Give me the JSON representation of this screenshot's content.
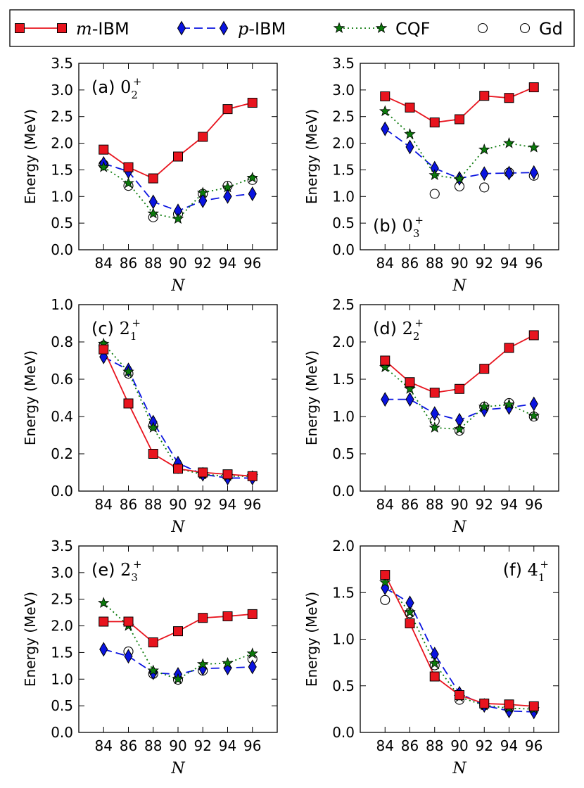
{
  "chart_data": {
    "type": "line",
    "legend": {
      "placement": "top",
      "entries": [
        {
          "key": "mibm",
          "prefix": "m",
          "suffix": "-IBM"
        },
        {
          "key": "pibm",
          "prefix": "p",
          "suffix": "-IBM"
        },
        {
          "key": "cqf",
          "prefix": "",
          "suffix": "CQF"
        },
        {
          "key": "gd",
          "prefix": "",
          "suffix": "Gd"
        }
      ]
    },
    "series_styles": {
      "mibm": {
        "color": "#e8141e",
        "marker": "square",
        "line": "solid"
      },
      "pibm": {
        "color": "#0a14e0",
        "marker": "diamond",
        "line": "dashed"
      },
      "cqf": {
        "color": "#0b7a0b",
        "marker": "star",
        "line": "dotted"
      },
      "gd": {
        "color": "#000000",
        "marker": "circle",
        "line": "none"
      }
    },
    "x": [
      84,
      86,
      88,
      90,
      92,
      94,
      96
    ],
    "xlabel": "N",
    "ylabel": "Energy (MeV)",
    "panels": [
      {
        "id": "a",
        "label": "(a)",
        "state": "0",
        "sub": "2",
        "sup": "+",
        "label_position": "top-left",
        "ylim": [
          0,
          3.5
        ],
        "yticks": [
          "0.0",
          "0.5",
          "1.0",
          "1.5",
          "2.0",
          "2.5",
          "3.0",
          "3.5"
        ],
        "series": {
          "mibm": [
            1.88,
            1.55,
            1.34,
            1.75,
            2.12,
            2.64,
            2.76
          ],
          "pibm": [
            1.62,
            1.47,
            0.9,
            0.73,
            0.92,
            1.0,
            1.05
          ],
          "cqf": [
            1.55,
            1.25,
            0.68,
            0.58,
            1.07,
            1.17,
            1.35
          ],
          "gd": [
            1.6,
            1.2,
            0.61,
            0.67,
            1.05,
            1.2,
            1.31
          ]
        }
      },
      {
        "id": "b",
        "label": "(b)",
        "state": "0",
        "sub": "3",
        "sup": "+",
        "label_position": "bottom-left",
        "ylim": [
          0,
          3.5
        ],
        "yticks": [
          "0.0",
          "0.5",
          "1.0",
          "1.5",
          "2.0",
          "2.5",
          "3.0",
          "3.5"
        ],
        "series": {
          "mibm": [
            2.88,
            2.67,
            2.39,
            2.45,
            2.89,
            2.85,
            3.05
          ],
          "pibm": [
            2.27,
            1.93,
            1.53,
            1.34,
            1.43,
            1.44,
            1.45
          ],
          "cqf": [
            2.6,
            2.17,
            1.4,
            1.33,
            1.88,
            2.0,
            1.92
          ],
          "gd": [
            null,
            null,
            1.05,
            1.19,
            1.17,
            1.45,
            1.39
          ]
        }
      },
      {
        "id": "c",
        "label": "(c)",
        "state": "2",
        "sub": "1",
        "sup": "+",
        "label_position": "top-left",
        "ylim": [
          0,
          1.0
        ],
        "yticks": [
          "0.0",
          "0.2",
          "0.4",
          "0.6",
          "0.8",
          "1.0"
        ],
        "series": {
          "mibm": [
            0.76,
            0.47,
            0.2,
            0.12,
            0.1,
            0.09,
            0.08
          ],
          "pibm": [
            0.72,
            0.65,
            0.37,
            0.15,
            0.09,
            0.07,
            0.07
          ],
          "cqf": [
            0.79,
            0.64,
            0.34,
            0.12,
            0.09,
            0.08,
            0.08
          ],
          "gd": [
            0.78,
            0.63,
            0.35,
            0.12,
            0.09,
            0.08,
            0.08
          ]
        }
      },
      {
        "id": "d",
        "label": "(d)",
        "state": "2",
        "sub": "2",
        "sup": "+",
        "label_position": "top-left",
        "ylim": [
          0,
          2.5
        ],
        "yticks": [
          "0.0",
          "0.5",
          "1.0",
          "1.5",
          "2.0",
          "2.5"
        ],
        "series": {
          "mibm": [
            1.75,
            1.46,
            1.32,
            1.37,
            1.64,
            1.92,
            2.09
          ],
          "pibm": [
            1.23,
            1.23,
            1.04,
            0.95,
            1.09,
            1.12,
            1.17
          ],
          "cqf": [
            1.66,
            1.37,
            0.85,
            0.83,
            1.13,
            1.16,
            1.01
          ],
          "gd": [
            null,
            null,
            0.94,
            0.81,
            1.13,
            1.18,
            1.0
          ]
        }
      },
      {
        "id": "e",
        "label": "(e)",
        "state": "2",
        "sub": "3",
        "sup": "+",
        "label_position": "top-left",
        "ylim": [
          0,
          3.5
        ],
        "yticks": [
          "0.0",
          "0.5",
          "1.0",
          "1.5",
          "2.0",
          "2.5",
          "3.0",
          "3.5"
        ],
        "series": {
          "mibm": [
            2.08,
            2.08,
            1.69,
            1.9,
            2.15,
            2.18,
            2.22
          ],
          "pibm": [
            1.56,
            1.43,
            1.12,
            1.09,
            1.2,
            1.21,
            1.23
          ],
          "cqf": [
            2.43,
            2.0,
            1.16,
            1.0,
            1.28,
            1.3,
            1.48
          ],
          "gd": [
            null,
            1.52,
            1.1,
            0.99,
            1.16,
            null,
            1.38
          ]
        }
      },
      {
        "id": "f",
        "label": "(f)",
        "state": "4",
        "sub": "1",
        "sup": "+",
        "label_position": "top-right",
        "ylim": [
          0,
          2.0
        ],
        "yticks": [
          "0.0",
          "0.5",
          "1.0",
          "1.5",
          "2.0"
        ],
        "series": {
          "mibm": [
            1.69,
            1.17,
            0.6,
            0.4,
            0.31,
            0.3,
            0.28
          ],
          "pibm": [
            1.55,
            1.39,
            0.84,
            0.42,
            0.29,
            0.23,
            0.22
          ],
          "cqf": [
            1.61,
            1.29,
            0.74,
            0.38,
            0.29,
            0.26,
            0.25
          ],
          "gd": [
            1.42,
            1.28,
            0.72,
            0.35,
            0.29,
            0.26,
            0.26
          ]
        }
      }
    ]
  }
}
